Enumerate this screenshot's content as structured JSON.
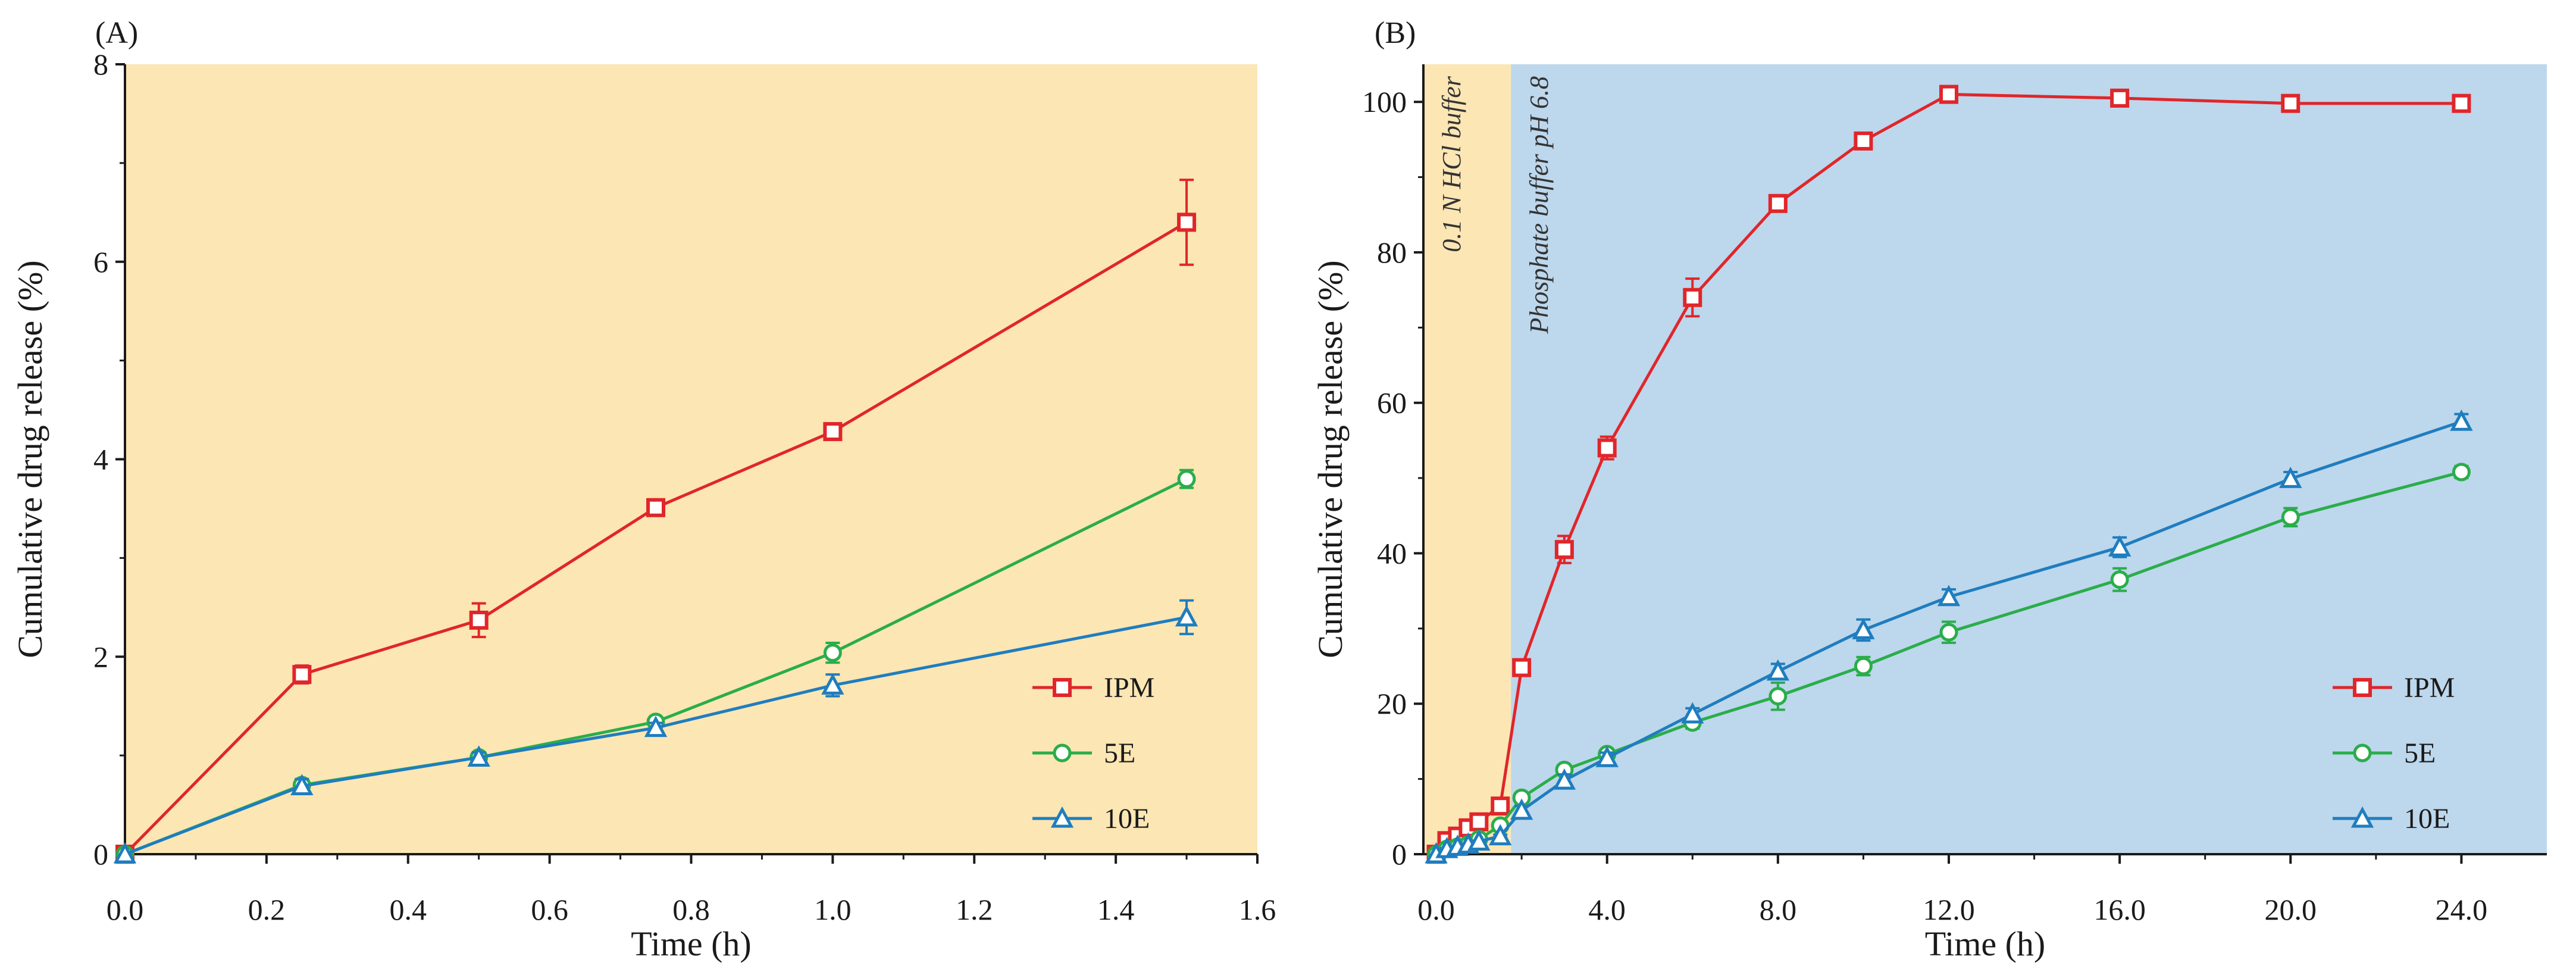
{
  "colors": {
    "ipm": "#e0262a",
    "e5": "#2aad4a",
    "e10": "#1f7dbf",
    "panel_a_background": "#fbe6b4",
    "acid_background": "#fbe6b4",
    "buffer_background": "#bdd7ec",
    "axis": "#1a1a1a"
  },
  "chart_data": [
    {
      "panel": "A",
      "panel_label": "(A)",
      "type": "line",
      "title": "",
      "xlabel": "Time (h)",
      "ylabel": "Cumulative drug release (%)",
      "xlim": [
        0,
        1.6
      ],
      "ylim": [
        0,
        8
      ],
      "x_ticks": [
        0,
        0.2,
        0.4,
        0.6,
        0.8,
        1.0,
        1.2,
        1.4,
        1.6
      ],
      "x_tick_labels": [
        "0.0",
        "0.2",
        "0.4",
        "0.6",
        "0.8",
        "1.0",
        "1.2",
        "1.4",
        "1.6"
      ],
      "y_ticks": [
        0,
        2,
        4,
        6,
        8
      ],
      "y_tick_labels": [
        "0",
        "2",
        "4",
        "6",
        "8"
      ],
      "grid": false,
      "legend_position": "bottom-right",
      "background_regions": [
        {
          "from": 0,
          "to": 1.6,
          "color_key": "panel_a_background",
          "label": ""
        }
      ],
      "series": [
        {
          "name": "IPM",
          "marker": "square",
          "color_key": "ipm",
          "x": [
            0,
            0.25,
            0.5,
            0.75,
            1.0,
            1.5
          ],
          "y": [
            0,
            1.82,
            2.37,
            3.51,
            4.28,
            6.4
          ],
          "err": [
            0,
            0.09,
            0.17,
            0.08,
            0.05,
            0.43
          ]
        },
        {
          "name": "5E",
          "marker": "circle",
          "color_key": "e5",
          "x": [
            0,
            0.25,
            0.5,
            0.75,
            1.0,
            1.5
          ],
          "y": [
            0,
            0.7,
            0.98,
            1.34,
            2.04,
            3.8
          ],
          "err": [
            0,
            0.06,
            0.05,
            0.05,
            0.1,
            0.09
          ]
        },
        {
          "name": "10E",
          "marker": "triangle",
          "color_key": "e10",
          "x": [
            0,
            0.25,
            0.5,
            0.75,
            1.0,
            1.5
          ],
          "y": [
            0,
            0.69,
            0.98,
            1.28,
            1.71,
            2.4
          ],
          "err": [
            0,
            0.07,
            0.05,
            0.05,
            0.11,
            0.17
          ]
        }
      ]
    },
    {
      "panel": "B",
      "panel_label": "(B)",
      "type": "line",
      "title": "",
      "xlabel": "Time (h)",
      "ylabel": "Cumulative drug release (%)",
      "xlim": [
        -0.3,
        26
      ],
      "ylim": [
        0,
        105
      ],
      "x_ticks": [
        0,
        4,
        8,
        12,
        16,
        20,
        24
      ],
      "x_tick_labels": [
        "0.0",
        "4.0",
        "8.0",
        "12.0",
        "16.0",
        "20.0",
        "24.0"
      ],
      "y_ticks": [
        0,
        20,
        40,
        60,
        80,
        100
      ],
      "y_tick_labels": [
        "0",
        "20",
        "40",
        "60",
        "80",
        "100"
      ],
      "grid": false,
      "legend_position": "bottom-right",
      "background_regions": [
        {
          "from": -0.3,
          "to": 1.75,
          "color_key": "acid_background",
          "label": "0.1 N HCl buffer"
        },
        {
          "from": 1.75,
          "to": 26,
          "color_key": "buffer_background",
          "label": "Phosphate buffer pH 6.8"
        }
      ],
      "series": [
        {
          "name": "IPM",
          "marker": "square",
          "color_key": "ipm",
          "x": [
            0,
            0.25,
            0.5,
            0.75,
            1.0,
            1.5,
            2,
            3,
            4,
            6,
            8,
            10,
            12,
            16,
            20,
            24
          ],
          "y": [
            0,
            1.8,
            2.4,
            3.5,
            4.3,
            6.4,
            24.8,
            40.5,
            54.0,
            74.0,
            86.5,
            94.8,
            101.0,
            100.5,
            99.8,
            99.8
          ],
          "err": [
            0,
            0.1,
            0.2,
            0.1,
            0.1,
            0.4,
            0.8,
            1.8,
            1.5,
            2.5,
            1.0,
            0.7,
            0.5,
            0.5,
            0.5,
            0.5
          ]
        },
        {
          "name": "5E",
          "marker": "circle",
          "color_key": "e5",
          "x": [
            0,
            0.25,
            0.5,
            0.75,
            1.0,
            1.5,
            2,
            3,
            4,
            6,
            8,
            10,
            12,
            16,
            20,
            24
          ],
          "y": [
            0,
            0.7,
            1.0,
            1.3,
            2.0,
            3.8,
            7.5,
            11.2,
            13.3,
            17.5,
            21.0,
            25.0,
            29.5,
            36.5,
            44.8,
            50.8
          ],
          "err": [
            0,
            0.1,
            0.1,
            0.1,
            0.1,
            0.2,
            0.5,
            0.6,
            0.6,
            0.8,
            1.8,
            1.2,
            1.4,
            1.5,
            1.2,
            0.8
          ]
        },
        {
          "name": "10E",
          "marker": "triangle",
          "color_key": "e10",
          "x": [
            0,
            0.25,
            0.5,
            0.75,
            1.0,
            1.5,
            2,
            3,
            4,
            6,
            8,
            10,
            12,
            16,
            20,
            24
          ],
          "y": [
            0,
            0.7,
            1.0,
            1.3,
            1.7,
            2.4,
            5.8,
            9.8,
            12.8,
            18.6,
            24.3,
            29.8,
            34.2,
            40.8,
            49.9,
            57.5
          ],
          "err": [
            0,
            0.1,
            0.1,
            0.1,
            0.1,
            0.2,
            0.6,
            0.8,
            0.7,
            0.8,
            1.0,
            1.4,
            1.0,
            1.3,
            0.9,
            1.0
          ]
        }
      ]
    }
  ]
}
